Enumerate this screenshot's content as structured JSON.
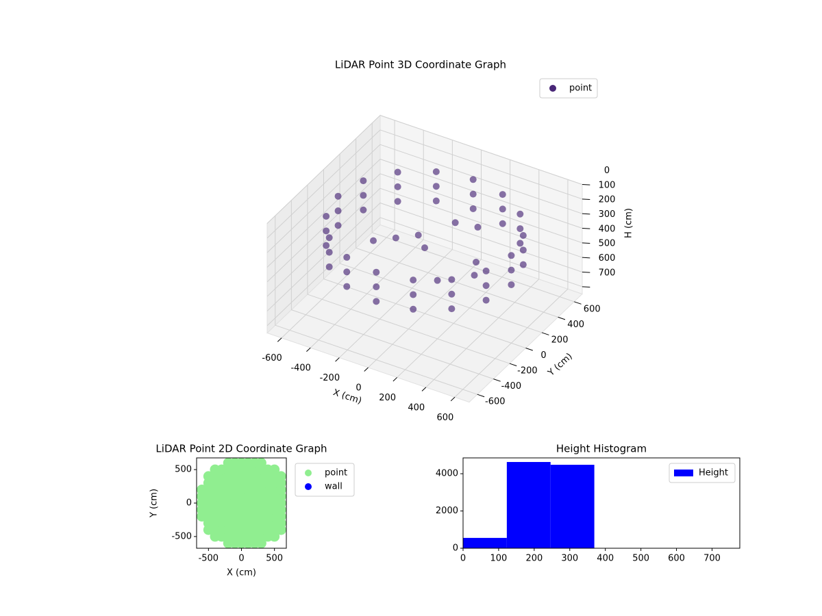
{
  "chart_data": [
    {
      "type": "scatter3d",
      "title": "LiDAR Point 3D Coordinate Graph",
      "xlabel": "X (cm)",
      "ylabel": "Y (cm)",
      "zlabel": "H (cm)",
      "xlim": [
        -700,
        700
      ],
      "ylim": [
        -700,
        700
      ],
      "zlim": [
        0,
        750
      ],
      "z_inverted": true,
      "xticks": [
        -600,
        -400,
        -200,
        0,
        200,
        400,
        600
      ],
      "yticks": [
        -600,
        -400,
        -200,
        0,
        200,
        400,
        600
      ],
      "zticks": [
        0,
        100,
        200,
        300,
        400,
        500,
        600,
        700
      ],
      "grid": true,
      "legend": "upper right",
      "series": [
        {
          "name": "point",
          "color": "#482677",
          "x": [
            600,
            554,
            424,
            230,
            0,
            -230,
            -424,
            -554,
            -600,
            -554,
            -424,
            -230,
            0,
            230,
            424,
            554,
            600,
            554,
            424,
            230,
            0,
            -230,
            -424,
            -554,
            -600,
            -554,
            -424,
            -230,
            0,
            230,
            424,
            554,
            600,
            554,
            424,
            230,
            0,
            -230,
            -424,
            -554,
            -600,
            -554,
            -424,
            -230,
            0,
            230,
            424,
            554,
            -200,
            -100,
            0,
            -300,
            100,
            200,
            300,
            400,
            200
          ],
          "y": [
            0,
            230,
            424,
            554,
            600,
            554,
            424,
            230,
            0,
            -230,
            -424,
            -554,
            -600,
            -554,
            -424,
            -230,
            0,
            230,
            424,
            554,
            600,
            554,
            424,
            230,
            0,
            -230,
            -424,
            -554,
            -600,
            -554,
            -424,
            -230,
            0,
            230,
            424,
            554,
            600,
            554,
            424,
            230,
            0,
            -230,
            -424,
            -554,
            -600,
            -554,
            -424,
            -230,
            0,
            100,
            0,
            -100,
            200,
            300,
            100,
            -100,
            -200
          ],
          "z": [
            150,
            150,
            150,
            150,
            150,
            150,
            150,
            150,
            150,
            150,
            150,
            150,
            150,
            150,
            150,
            150,
            250,
            250,
            250,
            250,
            250,
            250,
            250,
            250,
            250,
            250,
            250,
            250,
            250,
            250,
            250,
            250,
            350,
            350,
            350,
            350,
            350,
            350,
            350,
            350,
            350,
            350,
            350,
            350,
            350,
            350,
            350,
            350,
            300,
            300,
            300,
            300,
            200,
            250,
            350,
            300,
            350
          ]
        }
      ]
    },
    {
      "type": "scatter",
      "title": "LiDAR Point 2D Coordinate Graph",
      "xlabel": "X (cm)",
      "ylabel": "Y (cm)",
      "xlim": [
        -680,
        680
      ],
      "ylim": [
        -675,
        675
      ],
      "xticks": [
        -500,
        0,
        500
      ],
      "yticks": [
        -500,
        0,
        500
      ],
      "legend": "outside upper right",
      "series": [
        {
          "name": "point",
          "color": "lightgreen",
          "x": [
            -600,
            -600,
            -600,
            -600,
            -600,
            -500,
            -500,
            -500,
            -500,
            -500,
            -500,
            -500,
            -500,
            -500,
            -400,
            -400,
            -400,
            -400,
            -400,
            -400,
            -400,
            -400,
            -400,
            -400,
            -400,
            -300,
            -300,
            -300,
            -300,
            -300,
            -300,
            -300,
            -300,
            -300,
            -300,
            -300,
            -200,
            -200,
            -200,
            -200,
            -200,
            -200,
            -200,
            -200,
            -200,
            -200,
            -200,
            -200,
            -200,
            -100,
            -100,
            -100,
            -100,
            -100,
            -100,
            -100,
            -100,
            -100,
            -100,
            -100,
            -100,
            -100,
            0,
            0,
            0,
            0,
            0,
            0,
            0,
            0,
            0,
            0,
            0,
            0,
            0,
            100,
            100,
            100,
            100,
            100,
            100,
            100,
            100,
            100,
            100,
            100,
            100,
            100,
            200,
            200,
            200,
            200,
            200,
            200,
            200,
            200,
            200,
            200,
            200,
            200,
            200,
            300,
            300,
            300,
            300,
            300,
            300,
            300,
            300,
            300,
            300,
            300,
            300,
            300,
            400,
            400,
            400,
            400,
            400,
            400,
            400,
            400,
            400,
            400,
            400,
            500,
            500,
            500,
            500,
            500,
            500,
            500,
            500,
            500,
            500,
            500,
            600,
            600,
            600,
            600,
            600,
            600,
            600,
            600,
            600
          ],
          "y": [
            -200,
            -100,
            0,
            100,
            200,
            -400,
            -300,
            -200,
            -100,
            0,
            100,
            200,
            300,
            400,
            -500,
            -400,
            -300,
            -200,
            -100,
            0,
            100,
            200,
            300,
            400,
            500,
            -500,
            -400,
            -300,
            -200,
            -100,
            0,
            100,
            200,
            300,
            400,
            500,
            -600,
            -500,
            -400,
            -300,
            -200,
            -100,
            0,
            100,
            200,
            300,
            400,
            500,
            600,
            -600,
            -500,
            -400,
            -300,
            -200,
            -100,
            0,
            100,
            200,
            300,
            400,
            500,
            600,
            -600,
            -500,
            -400,
            -300,
            -200,
            -100,
            0,
            100,
            200,
            300,
            400,
            500,
            600,
            -600,
            -500,
            -400,
            -300,
            -200,
            -100,
            0,
            100,
            200,
            300,
            400,
            500,
            600,
            -600,
            -500,
            -400,
            -300,
            -200,
            -100,
            0,
            100,
            200,
            300,
            400,
            500,
            600,
            -600,
            -500,
            -400,
            -300,
            -200,
            -100,
            0,
            100,
            200,
            300,
            400,
            500,
            600,
            -500,
            -400,
            -300,
            -200,
            -100,
            0,
            100,
            200,
            300,
            400,
            500,
            -500,
            -400,
            -300,
            -200,
            -100,
            0,
            100,
            200,
            300,
            400,
            500,
            -400,
            -300,
            -200,
            -100,
            0,
            100,
            200,
            300,
            400
          ]
        },
        {
          "name": "wall",
          "color": "blue",
          "x": [],
          "y": []
        }
      ]
    },
    {
      "type": "histogram",
      "title": "Height Histogram",
      "xlim": [
        0,
        778
      ],
      "ylim": [
        0,
        4850
      ],
      "xticks": [
        0,
        100,
        200,
        300,
        400,
        500,
        600,
        700
      ],
      "yticks": [
        0,
        2000,
        4000
      ],
      "legend": "upper right",
      "series": [
        {
          "name": "Height",
          "color": "blue",
          "bins": [
            0,
            123,
            246,
            369,
            492,
            615,
            738
          ],
          "values": [
            555,
            4630,
            4480,
            0,
            0,
            0
          ]
        }
      ]
    }
  ]
}
